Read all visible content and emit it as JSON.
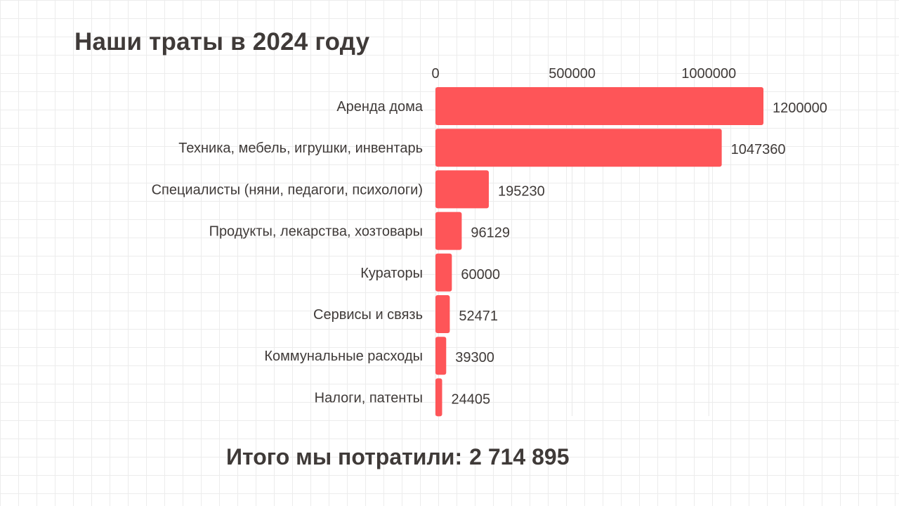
{
  "title": "Наши траты в 2024 году",
  "total": {
    "label": "Итого мы потратили:",
    "value": "2 714 895"
  },
  "colors": {
    "bar": "#fe5558",
    "text": "#3f3a38",
    "grid": "#e8e8e8"
  },
  "chart_data": {
    "type": "bar",
    "orientation": "horizontal",
    "categories": [
      "Аренда дома",
      "Техника, мебель, игрушки, инвентарь",
      "Специалисты (няни, педагоги, психологи)",
      "Продукты, лекарства, хозтовары",
      "Кураторы",
      "Сервисы и связь",
      "Коммунальные расходы",
      "Налоги, патенты"
    ],
    "values": [
      1200000,
      1047360,
      195230,
      96129,
      60000,
      52471,
      39300,
      24405
    ],
    "value_labels": [
      "1200000",
      "1047360",
      "195230",
      "96129",
      "60000",
      "52471",
      "39300",
      "24405"
    ],
    "x_ticks": [
      0,
      500000,
      1000000
    ],
    "x_tick_labels": [
      "0",
      "500000",
      "1000000"
    ],
    "xaxis_position": "top",
    "xlim": [
      0,
      1200000
    ],
    "grid": false,
    "legend": "none"
  }
}
